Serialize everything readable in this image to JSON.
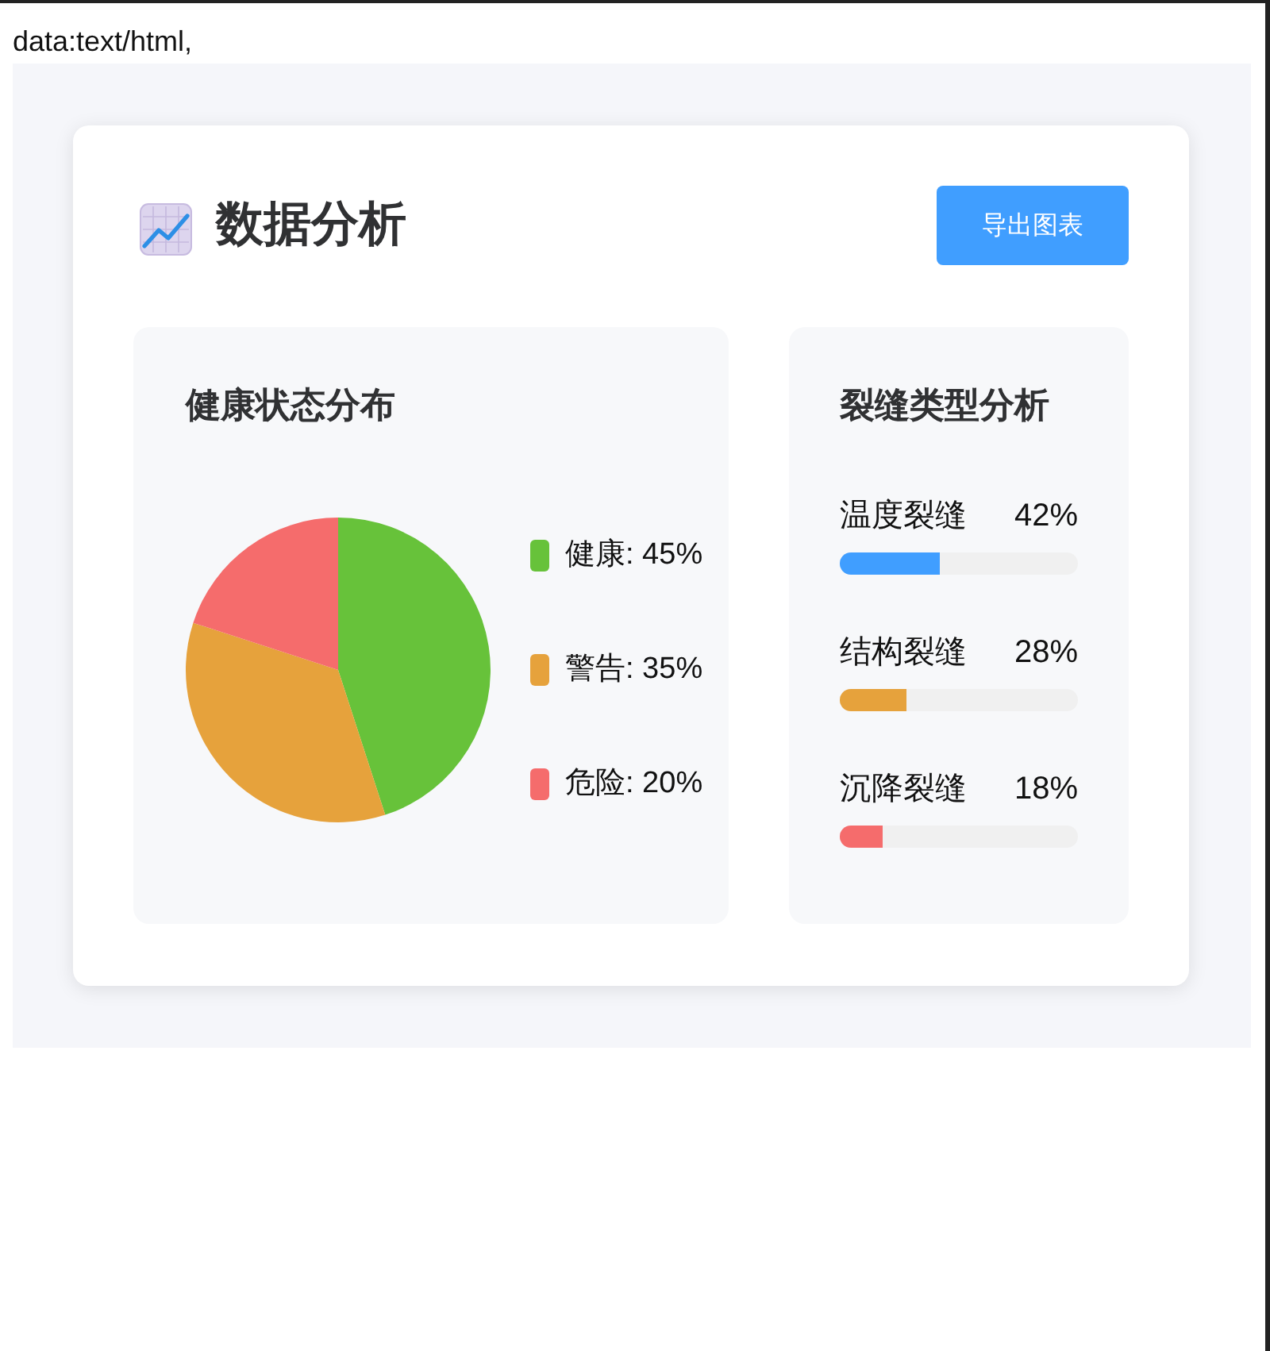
{
  "chart_data": [
    {
      "type": "other",
      "title": "数据分析",
      "annotations": [
        "data:text/html,",
        "导出图表"
      ]
    },
    {
      "type": "pie",
      "title": "健康状态分布",
      "categories": [
        "健康",
        "警告",
        "危险"
      ],
      "values": [
        45,
        35,
        20
      ],
      "value_labels": [
        "45%",
        "35%",
        "20%"
      ],
      "colors": [
        "#67c23a",
        "#e6a23c",
        "#f56c6c"
      ],
      "legend": "right"
    },
    {
      "type": "bar",
      "orientation": "horizontal",
      "title": "裂缝类型分析",
      "categories": [
        "温度裂缝",
        "结构裂缝",
        "沉降裂缝"
      ],
      "values": [
        42,
        28,
        18
      ],
      "value_labels": [
        "42%",
        "28%",
        "18%"
      ],
      "colors": [
        "#409eff",
        "#e6a23c",
        "#f56c6c"
      ],
      "xlim": [
        0,
        100
      ]
    }
  ]
}
